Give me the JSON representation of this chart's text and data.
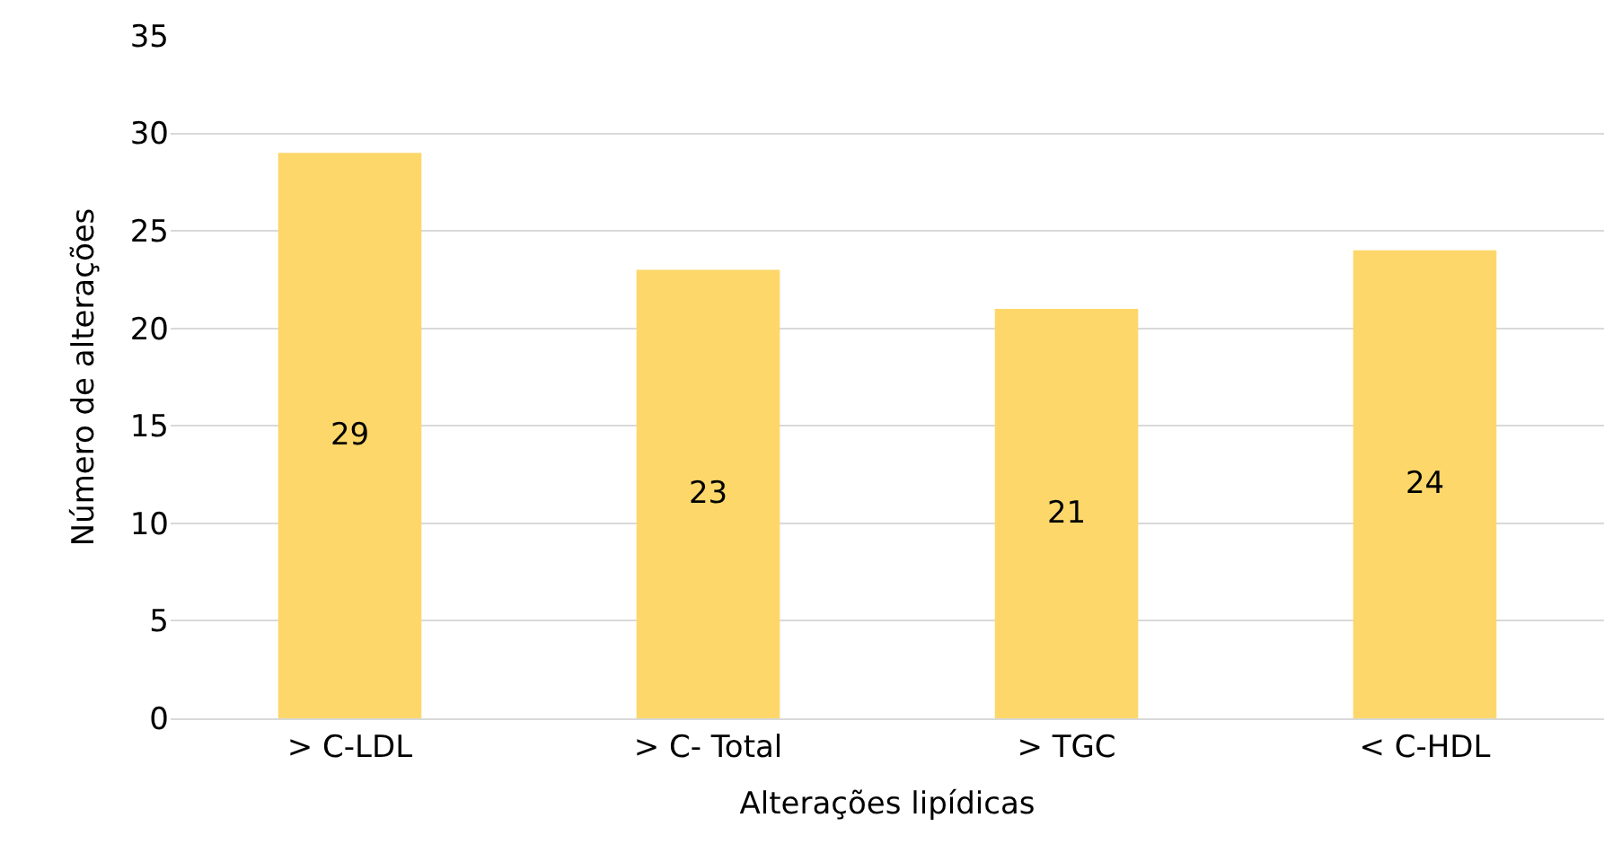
{
  "chart_data": {
    "type": "bar",
    "xlabel": "Alterações lipídicas",
    "ylabel": "Número de alterações",
    "categories": [
      "> C-LDL",
      "> C- Total",
      "> TGC",
      "< C-HDL"
    ],
    "values": [
      29,
      23,
      21,
      24
    ],
    "color": "#fdd76a",
    "ylim": [
      0,
      35
    ],
    "yticks": [
      0,
      5,
      10,
      15,
      20,
      25,
      30,
      35
    ],
    "grid": "y",
    "data_labels": true
  }
}
